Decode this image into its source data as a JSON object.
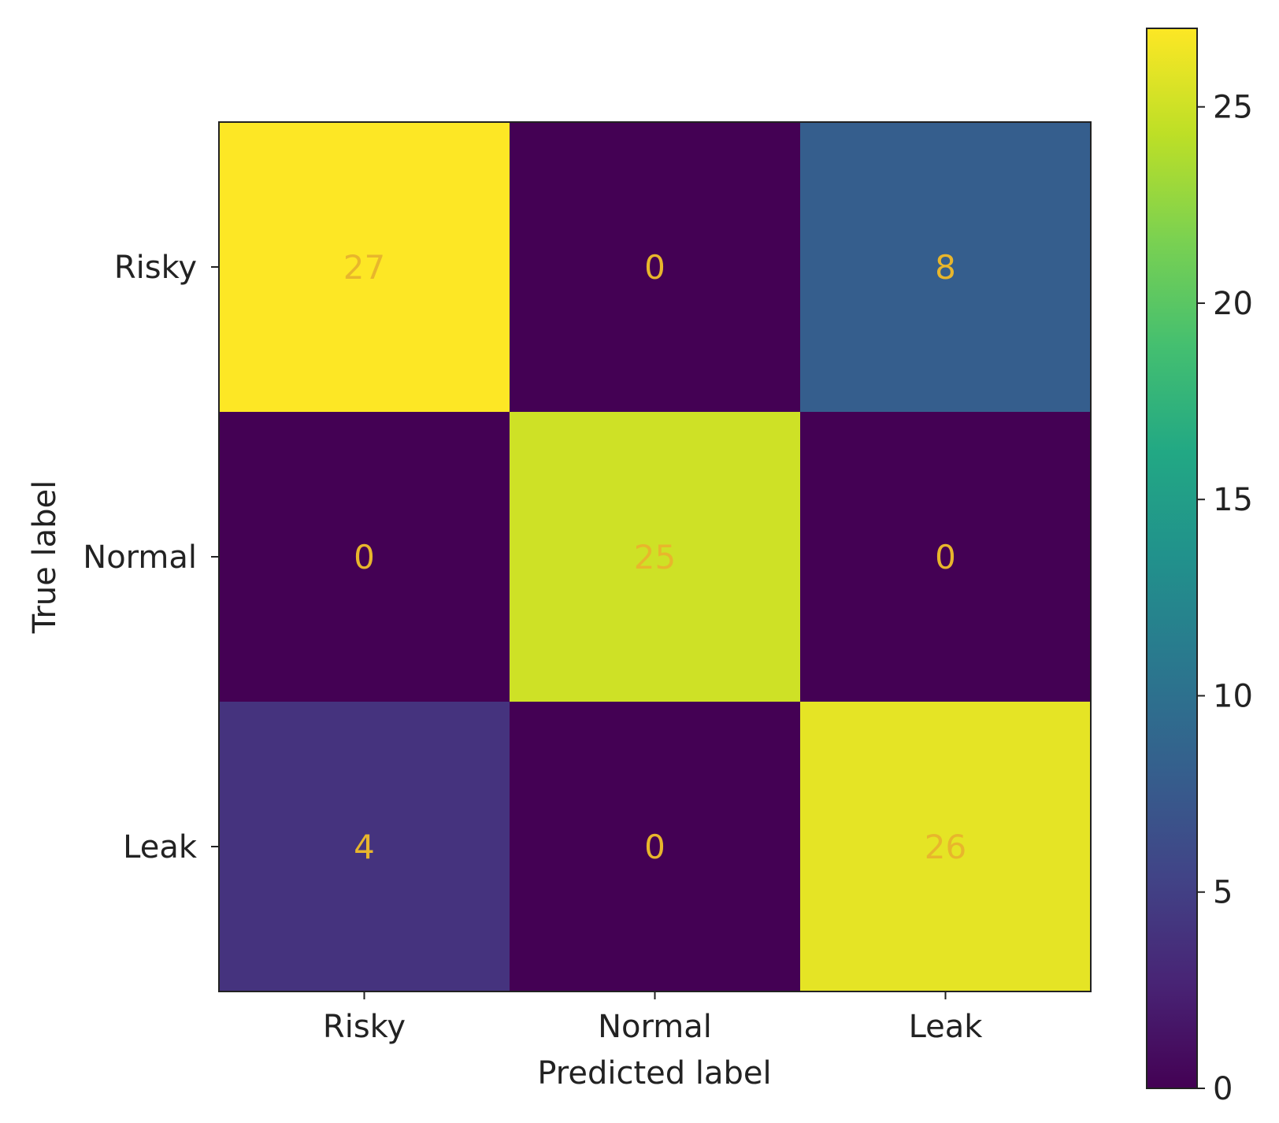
{
  "chart_data": {
    "type": "heatmap",
    "title": "",
    "xlabel": "Predicted label",
    "ylabel": "True label",
    "x_categories": [
      "Risky",
      "Normal",
      "Leak"
    ],
    "y_categories": [
      "Risky",
      "Normal",
      "Leak"
    ],
    "matrix": [
      [
        27,
        0,
        8
      ],
      [
        0,
        25,
        0
      ],
      [
        4,
        0,
        26
      ]
    ],
    "colormap": "viridis",
    "color_range": [
      0,
      27
    ],
    "colorbar_ticks": [
      0,
      5,
      10,
      15,
      20,
      25
    ],
    "colorbar_tick_labels": [
      "0",
      "5",
      "10",
      "15",
      "20",
      "25"
    ],
    "cell_text_color": "#e8b62c",
    "grid": false,
    "colorbar_placement": "right"
  }
}
